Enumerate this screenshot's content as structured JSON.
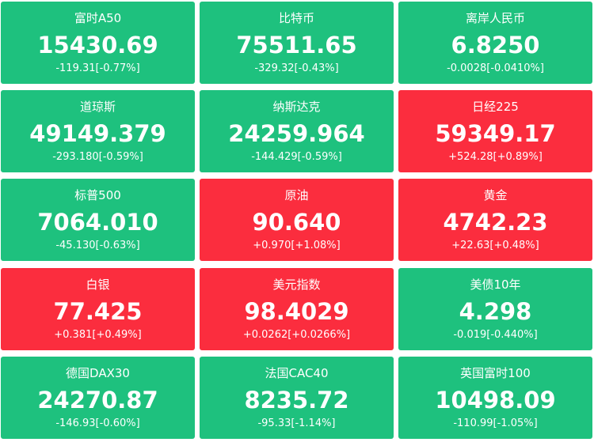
{
  "tiles": [
    {
      "name": "富时A50",
      "price": "15430.69",
      "change": "-119.31[-0.77%]"
    },
    {
      "name": "比特币",
      "price": "75511.65",
      "change": "-329.32[-0.43%]"
    },
    {
      "name": "离岸人民币",
      "price": "6.8250",
      "change": "-0.0028[-0.0410%]"
    },
    {
      "name": "道琼斯",
      "price": "49149.379",
      "change": "-293.180[-0.59%]"
    },
    {
      "name": "纳斯达克",
      "price": "24259.964",
      "change": "-144.429[-0.59%]"
    },
    {
      "name": "日经225",
      "price": "59349.17",
      "change": "+524.28[+0.89%]"
    },
    {
      "name": "标普500",
      "price": "7064.010",
      "change": "-45.130[-0.63%]"
    },
    {
      "name": "原油",
      "price": "90.640",
      "change": "+0.970[+1.08%]"
    },
    {
      "name": "黄金",
      "price": "4742.23",
      "change": "+22.63[+0.48%]"
    },
    {
      "name": "白银",
      "price": "77.425",
      "change": "+0.381[+0.49%]"
    },
    {
      "name": "美元指数",
      "price": "98.4029",
      "change": "+0.0262[+0.0266%]"
    },
    {
      "name": "美债10年",
      "price": "4.298",
      "change": "-0.019[-0.440%]"
    },
    {
      "name": "德国DAX30",
      "price": "24270.87",
      "change": "-146.93[-0.60%]"
    },
    {
      "name": "法国CAC40",
      "price": "8235.72",
      "change": "-95.33[-1.14%]"
    },
    {
      "name": "英国富时100",
      "price": "10498.09",
      "change": "-110.99[-1.05%]"
    }
  ]
}
